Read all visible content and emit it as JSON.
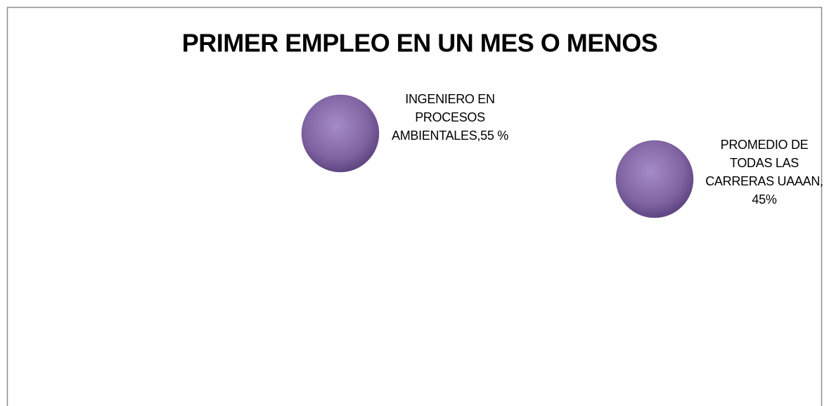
{
  "chart_data": {
    "type": "scatter",
    "title": "PRIMER EMPLEO EN UN MES O MENOS",
    "values": [
      55,
      45
    ],
    "value_labels": [
      "INGENIERO EN PROCESOS AMBIENTALES,55 %",
      "PROMEDIO DE TODAS LAS CARRERAS UAAAN, 45%"
    ],
    "color": "#8064a2"
  }
}
